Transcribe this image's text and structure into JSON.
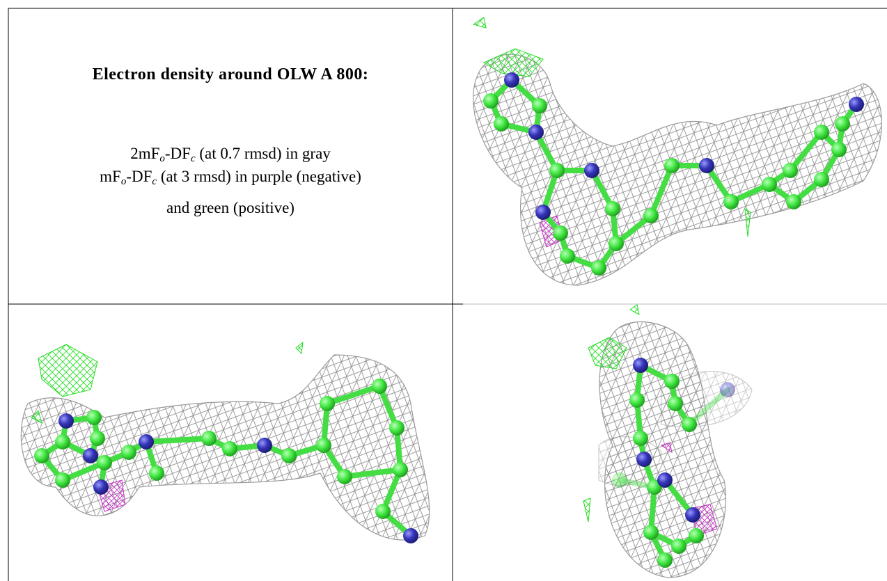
{
  "title": "Electron density around OLW A 800:",
  "legend_lines": [
    [
      "2mF",
      "o",
      "-DF",
      "c",
      " (at 0.7 rmsd) in gray"
    ],
    [
      "mF",
      "o",
      "-DF",
      "c",
      " (at 3 rmsd) in purple (negative)"
    ],
    [
      "and green (positive)"
    ]
  ]
}
